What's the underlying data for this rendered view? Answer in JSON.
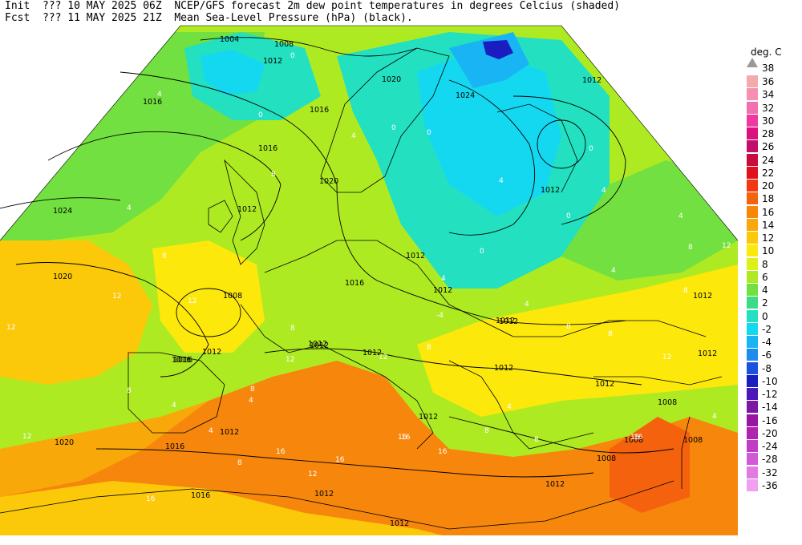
{
  "header": {
    "line1_prefix": "Init",
    "line1_run": "??? 10 MAY 2025 06Z",
    "line1_title": "NCEP/GFS forecast 2m dew point temperatures in degrees Celcius (shaded)",
    "line2_prefix": "Fcst",
    "line2_valid": "??? 11 MAY 2025 21Z",
    "line2_title": "Mean Sea-Level Pressure (hPa) (black)."
  },
  "legend": {
    "title": "deg. C",
    "overflow_value": "38",
    "entries": [
      {
        "label": "36",
        "color": "#f4aaaa"
      },
      {
        "label": "34",
        "color": "#f68fb0"
      },
      {
        "label": "32",
        "color": "#f070b0"
      },
      {
        "label": "30",
        "color": "#ee3aa0"
      },
      {
        "label": "28",
        "color": "#dd1080"
      },
      {
        "label": "26",
        "color": "#c0106a"
      },
      {
        "label": "24",
        "color": "#c80d3c"
      },
      {
        "label": "22",
        "color": "#e20f1c"
      },
      {
        "label": "20",
        "color": "#f23a12"
      },
      {
        "label": "18",
        "color": "#f5620e"
      },
      {
        "label": "16",
        "color": "#f7860c"
      },
      {
        "label": "14",
        "color": "#f9a80a"
      },
      {
        "label": "12",
        "color": "#fbc80a"
      },
      {
        "label": "10",
        "color": "#fde80c"
      },
      {
        "label": "8",
        "color": "#dcf01a"
      },
      {
        "label": "6",
        "color": "#aeea22"
      },
      {
        "label": "4",
        "color": "#72e040"
      },
      {
        "label": "2",
        "color": "#3cdc86"
      },
      {
        "label": "0",
        "color": "#22e0c0"
      },
      {
        "label": "-2",
        "color": "#14d8f0"
      },
      {
        "label": "-4",
        "color": "#18b4f4"
      },
      {
        "label": "-6",
        "color": "#1c8cf0"
      },
      {
        "label": "-8",
        "color": "#1a52e0"
      },
      {
        "label": "-10",
        "color": "#1a1ec0"
      },
      {
        "label": "-12",
        "color": "#4a18b8"
      },
      {
        "label": "-14",
        "color": "#7a16a8"
      },
      {
        "label": "-16",
        "color": "#9a16a0"
      },
      {
        "label": "-20",
        "color": "#b022b0"
      },
      {
        "label": "-24",
        "color": "#c23cc4"
      },
      {
        "label": "-28",
        "color": "#d25ad6"
      },
      {
        "label": "-32",
        "color": "#e27ae4"
      },
      {
        "label": "-36",
        "color": "#f0a0f0"
      }
    ]
  },
  "map": {
    "isobar_labels": [
      "1004",
      "1008",
      "1012",
      "1016",
      "1012",
      "1016",
      "1024",
      "1020",
      "1016",
      "1020",
      "1012",
      "1008",
      "1012",
      "1016",
      "1020",
      "1016",
      "1012",
      "1012",
      "1012",
      "1012",
      "1024",
      "1012",
      "1008",
      "1012",
      "1012",
      "1012",
      "1008",
      "1012",
      "1016",
      "1020",
      "1016",
      "1012",
      "1012",
      "1012",
      "1012",
      "1008",
      "1008",
      "1012",
      "1012",
      "1012",
      "1016",
      "1012"
    ],
    "dewpoint_labels": [
      "0",
      "0",
      "4",
      "0",
      "0",
      "4",
      "8",
      "4",
      "4",
      "0",
      "8",
      "12",
      "12",
      "8",
      "12",
      "16",
      "16",
      "16",
      "16",
      "16",
      "12",
      "8",
      "4",
      "4",
      "8",
      "12",
      "12",
      "8",
      "12",
      "12",
      "16",
      "16",
      "8",
      "4",
      "0",
      "4",
      "4",
      "-4",
      "8",
      "8",
      "4",
      "8",
      "12",
      "4",
      "8",
      "8",
      "4",
      "16",
      "4",
      "8",
      "4",
      "0"
    ]
  }
}
